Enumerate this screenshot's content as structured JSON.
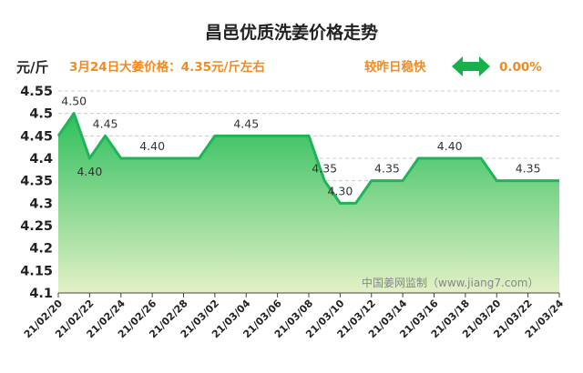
{
  "header": {
    "title": "昌邑优质洗姜价格走势",
    "unit": "元/斤",
    "price_info": "3月24日大姜价格：4.35元/斤左右",
    "trend_text": "较昨日稳快",
    "trend_icon": "double-arrow-icon",
    "change": "0.00%",
    "watermark": "中国姜网监制（www.jiang7.com）"
  },
  "colors": {
    "line": "#1fb457",
    "fill_top": "#2dbf5c",
    "fill_bottom": "#e3f1c6",
    "accent": "#f08a24",
    "arrow": "#18b04a",
    "grid": "#cccccc"
  },
  "chart_data": {
    "type": "area",
    "title": "昌邑优质洗姜价格走势",
    "ylabel": "元/斤",
    "xlabel": "",
    "ylim": [
      4.1,
      4.55
    ],
    "yticks": [
      "4.1",
      "4.15",
      "4.2",
      "4.25",
      "4.3",
      "4.35",
      "4.4",
      "4.45",
      "4.5",
      "4.55"
    ],
    "xtick_labels": [
      "21/02/20",
      "21/02/22",
      "21/02/24",
      "21/02/26",
      "21/02/28",
      "21/03/02",
      "21/03/04",
      "21/03/06",
      "21/03/08",
      "21/03/10",
      "21/03/12",
      "21/03/14",
      "21/03/16",
      "21/03/18",
      "21/03/20",
      "21/03/22",
      "21/03/24"
    ],
    "dates": [
      "21/02/20",
      "21/02/21",
      "21/02/22",
      "21/02/23",
      "21/02/24",
      "21/02/25",
      "21/02/26",
      "21/02/27",
      "21/02/28",
      "21/03/01",
      "21/03/02",
      "21/03/03",
      "21/03/04",
      "21/03/05",
      "21/03/06",
      "21/03/07",
      "21/03/08",
      "21/03/09",
      "21/03/10",
      "21/03/11",
      "21/03/12",
      "21/03/13",
      "21/03/14",
      "21/03/15",
      "21/03/16",
      "21/03/17",
      "21/03/18",
      "21/03/19",
      "21/03/20",
      "21/03/21",
      "21/03/22",
      "21/03/23",
      "21/03/24"
    ],
    "values": [
      4.45,
      4.5,
      4.4,
      4.45,
      4.4,
      4.4,
      4.4,
      4.4,
      4.4,
      4.4,
      4.45,
      4.45,
      4.45,
      4.45,
      4.45,
      4.45,
      4.45,
      4.35,
      4.3,
      4.3,
      4.35,
      4.35,
      4.35,
      4.4,
      4.4,
      4.4,
      4.4,
      4.4,
      4.35,
      4.35,
      4.35,
      4.35,
      4.35
    ],
    "data_labels": [
      {
        "index": 1,
        "text": "4.50"
      },
      {
        "index": 2,
        "text": "4.40"
      },
      {
        "index": 3,
        "text": "4.45"
      },
      {
        "index": 6,
        "text": "4.40"
      },
      {
        "index": 12,
        "text": "4.45"
      },
      {
        "index": 17,
        "text": "4.35"
      },
      {
        "index": 18,
        "text": "4.30"
      },
      {
        "index": 21,
        "text": "4.35"
      },
      {
        "index": 25,
        "text": "4.40"
      },
      {
        "index": 30,
        "text": "4.35"
      }
    ],
    "grid": true,
    "legend": "none"
  }
}
